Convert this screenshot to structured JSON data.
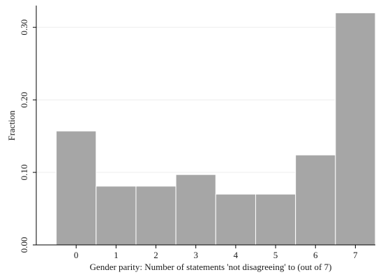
{
  "chart_data": {
    "type": "bar",
    "title": "",
    "xlabel": "Gender parity: Number of statements 'not disagreeing' to (out of 7)",
    "ylabel": "Fraction",
    "categories": [
      "0",
      "1",
      "2",
      "3",
      "4",
      "5",
      "6",
      "7"
    ],
    "values": [
      0.157,
      0.081,
      0.081,
      0.097,
      0.07,
      0.07,
      0.124,
      0.32
    ],
    "ylim": [
      0,
      0.33
    ],
    "yticks": [
      0.0,
      0.1,
      0.2,
      0.3
    ],
    "ytick_labels": [
      "0.00",
      "0.10",
      "0.20",
      "0.30"
    ],
    "xlim": [
      -1,
      7.5
    ],
    "grid": true,
    "bar_color": "#a6a6a6",
    "bar_edge_color": "#ffffff",
    "grid_color": "#ececec"
  }
}
